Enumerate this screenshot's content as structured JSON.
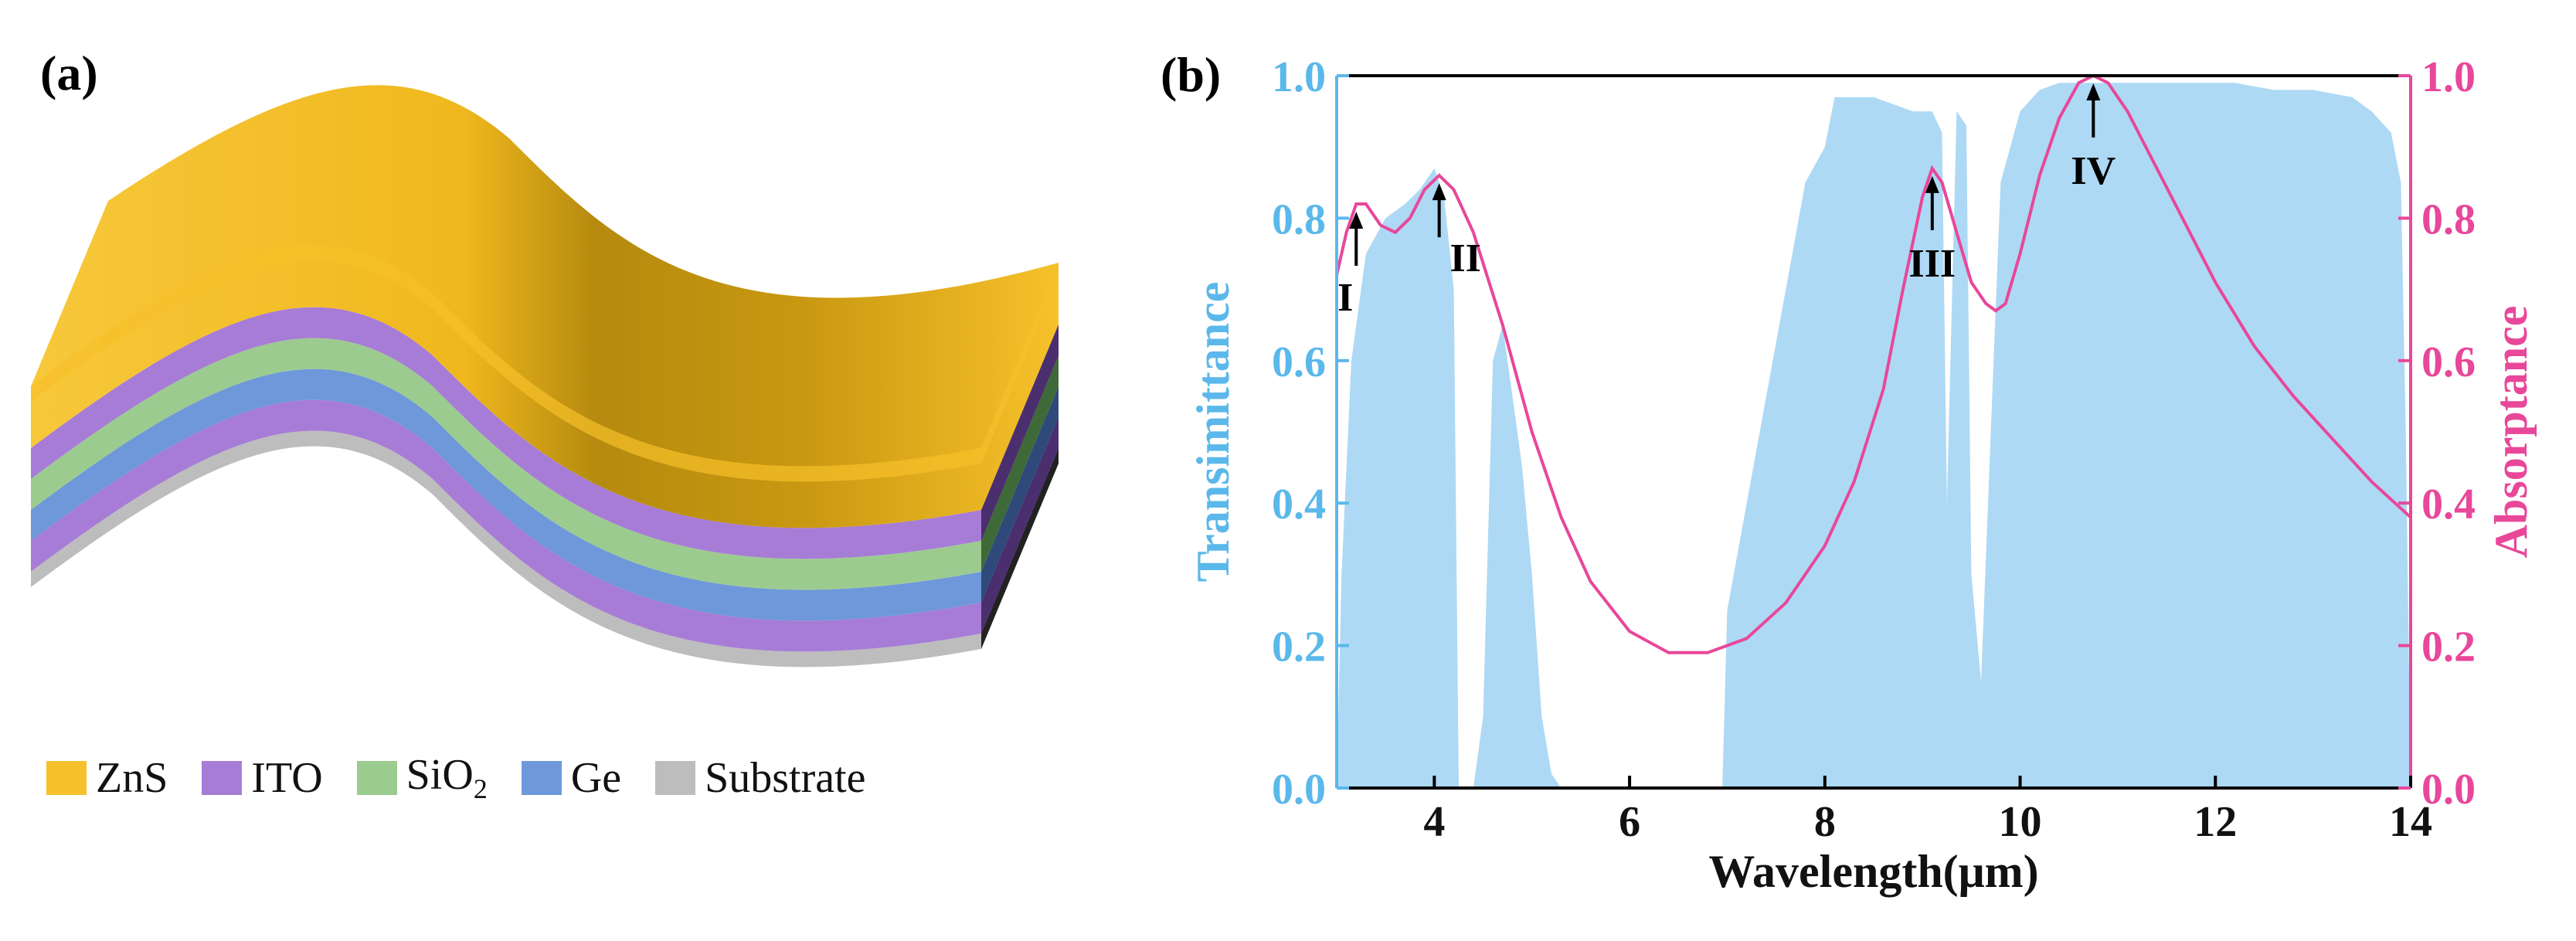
{
  "panel_a": {
    "label": "(a)",
    "legend": [
      {
        "name": "ZnS",
        "base": "ZnS",
        "sub": "",
        "color": "#F6C12A"
      },
      {
        "name": "ITO",
        "base": "ITO",
        "sub": "",
        "color": "#A77CD6"
      },
      {
        "name": "SiO2",
        "base": "SiO",
        "sub": "2",
        "color": "#9CCB90"
      },
      {
        "name": "Ge",
        "base": "Ge",
        "sub": "",
        "color": "#6E98DA"
      },
      {
        "name": "Substrate",
        "base": "Substrate",
        "sub": "",
        "color": "#BDBDBD"
      }
    ]
  },
  "chart_data": {
    "type": "area+line",
    "label": "(b)",
    "xlabel": "Wavelength(μm)",
    "ylabel_left": "Transimittance",
    "ylabel_right": "Absorptance",
    "xlim": [
      3,
      14
    ],
    "ylim_left": [
      0,
      1.0
    ],
    "ylim_right": [
      0,
      1.0
    ],
    "x_ticks": [
      "4",
      "6",
      "8",
      "10",
      "12",
      "14"
    ],
    "y_ticks_left": [
      "0.0",
      "0.2",
      "0.4",
      "0.6",
      "0.8",
      "1.0"
    ],
    "y_ticks_right": [
      "0.0",
      "0.2",
      "0.4",
      "0.6",
      "0.8",
      "1.0"
    ],
    "colors": {
      "transmittance": "#AED9F5",
      "absorptance": "#E8479A",
      "left_axis": "#5BB8EA",
      "right_axis": "#E8479A"
    },
    "series": [
      {
        "name": "Transimittance",
        "style": "area",
        "x": [
          3.0,
          3.05,
          3.15,
          3.3,
          3.5,
          3.7,
          3.85,
          4.0,
          4.1,
          4.2,
          4.25,
          4.4,
          4.5,
          4.6,
          4.7,
          4.8,
          4.9,
          5.0,
          5.1,
          5.2,
          5.3,
          5.4,
          6.95,
          7.0,
          7.2,
          7.4,
          7.6,
          7.8,
          8.0,
          8.1,
          8.3,
          8.5,
          8.7,
          8.9,
          9.0,
          9.1,
          9.2,
          9.25,
          9.35,
          9.45,
          9.5,
          9.6,
          9.7,
          9.8,
          10.0,
          10.2,
          10.4,
          10.6,
          10.8,
          11.0,
          11.4,
          11.8,
          12.2,
          12.6,
          13.0,
          13.4,
          13.6,
          13.8,
          13.9,
          13.95,
          14.0
        ],
        "y": [
          0.0,
          0.3,
          0.6,
          0.75,
          0.8,
          0.82,
          0.84,
          0.87,
          0.83,
          0.7,
          0.0,
          0.0,
          0.1,
          0.6,
          0.65,
          0.55,
          0.45,
          0.3,
          0.1,
          0.02,
          0.0,
          0.0,
          0.0,
          0.25,
          0.4,
          0.55,
          0.7,
          0.85,
          0.9,
          0.97,
          0.97,
          0.97,
          0.96,
          0.95,
          0.95,
          0.95,
          0.92,
          0.4,
          0.95,
          0.93,
          0.3,
          0.15,
          0.5,
          0.85,
          0.95,
          0.98,
          0.99,
          0.99,
          0.99,
          0.99,
          0.99,
          0.99,
          0.99,
          0.98,
          0.98,
          0.97,
          0.95,
          0.92,
          0.85,
          0.5,
          0.0
        ]
      },
      {
        "name": "Absorptance",
        "style": "line",
        "x": [
          3.0,
          3.1,
          3.2,
          3.3,
          3.45,
          3.6,
          3.75,
          3.9,
          4.05,
          4.2,
          4.4,
          4.7,
          5.0,
          5.3,
          5.6,
          6.0,
          6.4,
          6.8,
          7.2,
          7.6,
          8.0,
          8.3,
          8.6,
          8.8,
          9.0,
          9.1,
          9.2,
          9.35,
          9.5,
          9.65,
          9.75,
          9.85,
          10.0,
          10.2,
          10.4,
          10.6,
          10.75,
          10.9,
          11.1,
          11.4,
          11.7,
          12.0,
          12.4,
          12.8,
          13.2,
          13.6,
          14.0
        ],
        "y": [
          0.72,
          0.78,
          0.82,
          0.82,
          0.79,
          0.78,
          0.8,
          0.84,
          0.86,
          0.84,
          0.78,
          0.65,
          0.5,
          0.38,
          0.29,
          0.22,
          0.19,
          0.19,
          0.21,
          0.26,
          0.34,
          0.43,
          0.56,
          0.7,
          0.83,
          0.87,
          0.85,
          0.78,
          0.71,
          0.68,
          0.67,
          0.68,
          0.75,
          0.86,
          0.94,
          0.99,
          1.0,
          0.99,
          0.95,
          0.87,
          0.79,
          0.71,
          0.62,
          0.55,
          0.49,
          0.43,
          0.38
        ]
      }
    ],
    "annotations": [
      {
        "text": "I",
        "x": 3.2,
        "y": 0.82
      },
      {
        "text": "II",
        "x": 4.05,
        "y": 0.86
      },
      {
        "text": "III",
        "x": 9.1,
        "y": 0.87
      },
      {
        "text": "IV",
        "x": 10.75,
        "y": 1.0
      }
    ]
  }
}
